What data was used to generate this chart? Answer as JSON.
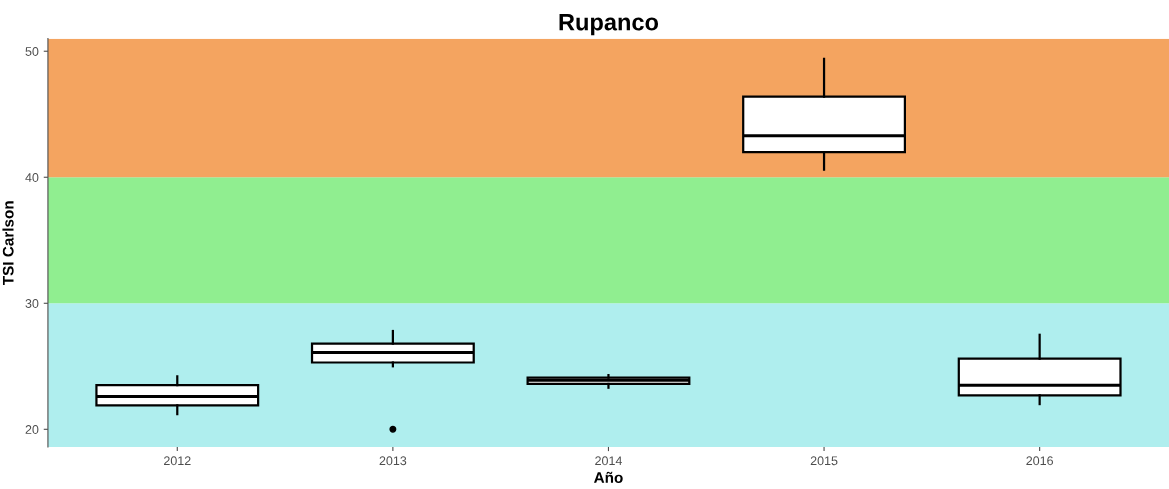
{
  "chart_data": {
    "type": "box",
    "title": "Rupanco",
    "xlabel": "Año",
    "ylabel": "TSI Carlson",
    "categories": [
      "2012",
      "2013",
      "2014",
      "2015",
      "2016"
    ],
    "boxes": [
      {
        "low": 21.2,
        "q1": 21.9,
        "median": 22.6,
        "q3": 23.5,
        "high": 24.2
      },
      {
        "low": 25.0,
        "q1": 25.3,
        "median": 26.1,
        "q3": 26.8,
        "high": 27.8,
        "outliers": [
          20.0
        ]
      },
      {
        "low": 23.3,
        "q1": 23.6,
        "median": 23.9,
        "q3": 24.1,
        "high": 24.3
      },
      {
        "low": 40.6,
        "q1": 42.0,
        "median": 43.3,
        "q3": 46.4,
        "high": 49.4
      },
      {
        "low": 22.0,
        "q1": 22.7,
        "median": 23.5,
        "q3": 25.6,
        "high": 27.5
      }
    ],
    "color": "#ffffff",
    "ylim": [
      18.6,
      51
    ],
    "yticks": [
      20,
      30,
      40,
      50
    ],
    "bands": [
      {
        "axis": "y",
        "from": 18.6,
        "to": 30,
        "color": "#afeeee"
      },
      {
        "axis": "y",
        "from": 30,
        "to": 40,
        "color": "#90ee90"
      },
      {
        "axis": "y",
        "from": 40,
        "to": 51,
        "color": "#f4a460"
      }
    ],
    "grid": false
  }
}
